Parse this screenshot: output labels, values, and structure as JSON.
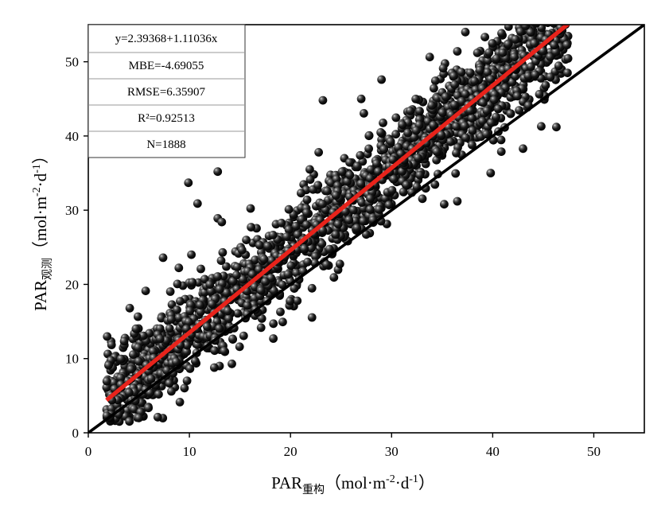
{
  "chart_data": {
    "type": "scatter",
    "title": "",
    "xlabel": {
      "main": "PAR",
      "subscript": "重构",
      "unit_open": "（mol·m",
      "unit_sup1": "-2",
      "unit_mid": "·d",
      "unit_sup2": "-1",
      "unit_close": "）"
    },
    "ylabel": {
      "main": "PAR",
      "subscript": "观测",
      "unit_open": "（mol·m",
      "unit_sup1": "-2",
      "unit_mid": "·d",
      "unit_sup2": "-1",
      "unit_close": "）"
    },
    "xlim": [
      0,
      55
    ],
    "ylim": [
      0,
      55
    ],
    "xticks": [
      0,
      10,
      20,
      30,
      40,
      50
    ],
    "yticks": [
      0,
      10,
      20,
      30,
      40,
      50
    ],
    "grid": false,
    "stats": [
      "y=2.39368+1.11036x",
      "MBE=-4.69055",
      "RMSE=6.35907",
      "R²=0.92513",
      "N=1888"
    ],
    "stats_position": "top-left",
    "fit_line": {
      "intercept": 2.39368,
      "slope": 1.11036,
      "x_range": [
        1.8,
        47.5
      ],
      "color": "#e8231b"
    },
    "one_to_one_line": {
      "intercept": 0,
      "slope": 1,
      "x_range": [
        0,
        55
      ],
      "color": "#000000"
    },
    "point_color": "#000000",
    "point_cloud": {
      "n": 1888,
      "x_range": [
        1.8,
        47.5
      ],
      "model": "y = 2.39368 + 1.11036x",
      "residual_sd": 3.2
    },
    "notable_points": [
      [
        9.9,
        33.7
      ],
      [
        12.8,
        35.2
      ],
      [
        10.8,
        30.9
      ],
      [
        23.2,
        44.8
      ],
      [
        27.0,
        45.0
      ],
      [
        29.0,
        47.6
      ],
      [
        37.3,
        54.0
      ],
      [
        12.8,
        28.9
      ],
      [
        13.2,
        28.4
      ],
      [
        7.4,
        23.6
      ],
      [
        10.2,
        24.0
      ],
      [
        18.3,
        12.7
      ],
      [
        19.0,
        16.3
      ],
      [
        46.3,
        41.2
      ],
      [
        47.4,
        48.5
      ],
      [
        43.0,
        38.3
      ],
      [
        39.8,
        35.0
      ],
      [
        35.2,
        30.8
      ],
      [
        14.2,
        9.3
      ],
      [
        5.0,
        2.0
      ],
      [
        3.0,
        2.5
      ],
      [
        2.0,
        9.1
      ],
      [
        4.1,
        16.8
      ],
      [
        44.8,
        41.3
      ],
      [
        36.5,
        31.2
      ]
    ]
  }
}
